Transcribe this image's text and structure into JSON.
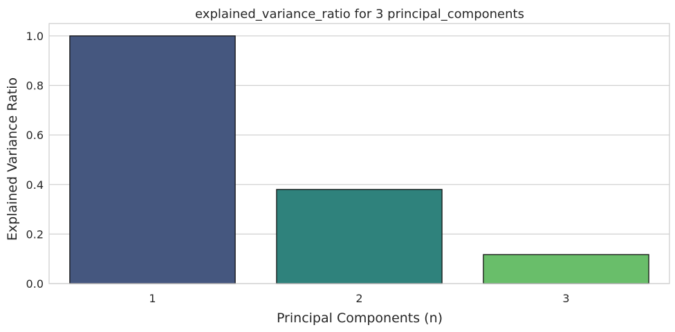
{
  "chart_data": {
    "type": "bar",
    "title": "explained_variance_ratio for 3 principal_components",
    "xlabel": "Principal Components (n)",
    "ylabel": "Explained Variance Ratio",
    "categories": [
      "1",
      "2",
      "3"
    ],
    "values": [
      1.0,
      0.38,
      0.117
    ],
    "ylim": [
      0,
      1.05
    ],
    "yticks": [
      "0.0",
      "0.2",
      "0.4",
      "0.6",
      "0.8",
      "1.0"
    ],
    "grid": "horizontal",
    "colors": [
      "#45577f",
      "#2f827c",
      "#69be6a"
    ],
    "bar_edge_color": "#111111",
    "grid_color": "#d0d0d0",
    "spine_color": "#cccccc"
  }
}
